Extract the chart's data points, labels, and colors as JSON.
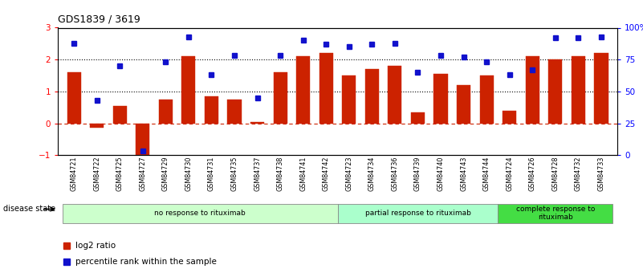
{
  "title": "GDS1839 / 3619",
  "samples": [
    "GSM84721",
    "GSM84722",
    "GSM84725",
    "GSM84727",
    "GSM84729",
    "GSM84730",
    "GSM84731",
    "GSM84735",
    "GSM84737",
    "GSM84738",
    "GSM84741",
    "GSM84742",
    "GSM84723",
    "GSM84734",
    "GSM84736",
    "GSM84739",
    "GSM84740",
    "GSM84743",
    "GSM84744",
    "GSM84724",
    "GSM84726",
    "GSM84728",
    "GSM84732",
    "GSM84733"
  ],
  "log2_ratio": [
    1.6,
    -0.15,
    0.55,
    -1.1,
    0.75,
    2.1,
    0.85,
    0.75,
    0.05,
    1.6,
    2.1,
    2.2,
    1.5,
    1.7,
    1.8,
    0.35,
    1.55,
    1.2,
    1.5,
    0.4,
    2.1,
    2.0,
    2.1,
    2.2
  ],
  "percentile_pct": [
    88,
    43,
    70,
    3,
    73,
    93,
    63,
    78,
    45,
    78,
    90,
    87,
    85,
    87,
    88,
    65,
    78,
    77,
    73,
    63,
    67,
    92,
    92,
    93
  ],
  "bar_color": "#cc2200",
  "dot_color": "#1111cc",
  "group_boundaries": [
    0,
    12,
    19,
    24
  ],
  "group_labels": [
    "no response to rituximab",
    "partial response to rituximab",
    "complete response to\nrituximab"
  ],
  "group_colors": [
    "#ccffcc",
    "#aaffcc",
    "#44dd44"
  ],
  "ylim_left": [
    -1,
    3
  ],
  "ylim_right": [
    0,
    100
  ],
  "yticks_left": [
    -1,
    0,
    1,
    2,
    3
  ],
  "yticks_right": [
    0,
    25,
    50,
    75,
    100
  ],
  "hlines_dashed": [
    0
  ],
  "hlines_dotted": [
    1,
    2
  ],
  "hline_dashed_color": "#cc2200",
  "hline_dotted_color": "#000000",
  "disease_state_label": "disease state",
  "legend_items": [
    {
      "label": "log2 ratio",
      "color": "#cc2200"
    },
    {
      "label": "percentile rank within the sample",
      "color": "#1111cc"
    }
  ]
}
